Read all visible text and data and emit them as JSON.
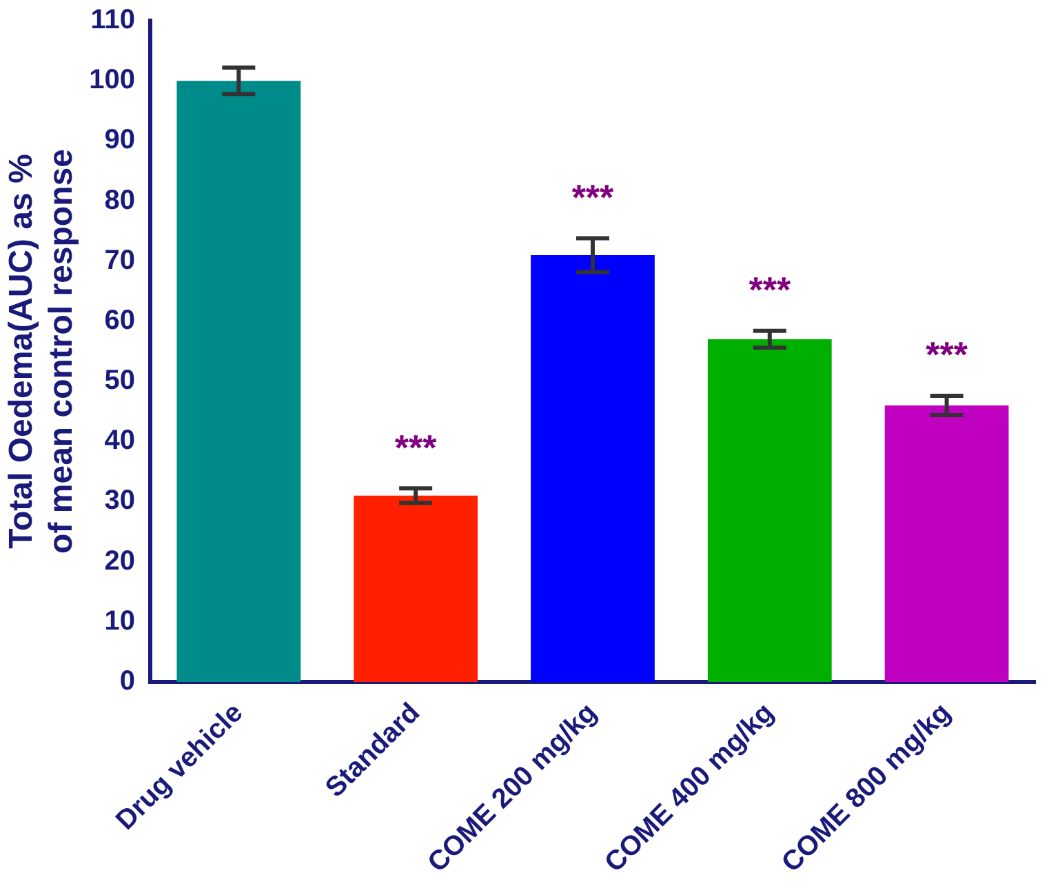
{
  "chart_data": {
    "type": "bar",
    "ylabel": "Total Oedema(AUC) as %\nof mean control response",
    "categories": [
      "Drug vehicle",
      "Standard",
      "COME 200 mg/kg",
      "COME 400 mg/kg",
      "COME 800 mg/kg"
    ],
    "values": [
      100,
      31,
      71,
      57,
      46
    ],
    "errors": [
      2.2,
      1.2,
      2.8,
      1.4,
      1.6
    ],
    "colors": [
      "#008b8b",
      "#ff2000",
      "#0000ff",
      "#00b000",
      "#c000c0"
    ],
    "ylim": [
      0,
      110
    ],
    "yticks": [
      0,
      10,
      20,
      30,
      40,
      50,
      60,
      70,
      80,
      90,
      100,
      110
    ],
    "grid": false,
    "legend": false,
    "annotations": [
      {
        "text": "***",
        "x": "Standard",
        "y": 31
      },
      {
        "text": "***",
        "x": "COME 200 mg/kg",
        "y": 71
      },
      {
        "text": "***",
        "x": "COME 400 mg/kg",
        "y": 57
      },
      {
        "text": "***",
        "x": "COME 800 mg/kg",
        "y": 46
      }
    ]
  }
}
